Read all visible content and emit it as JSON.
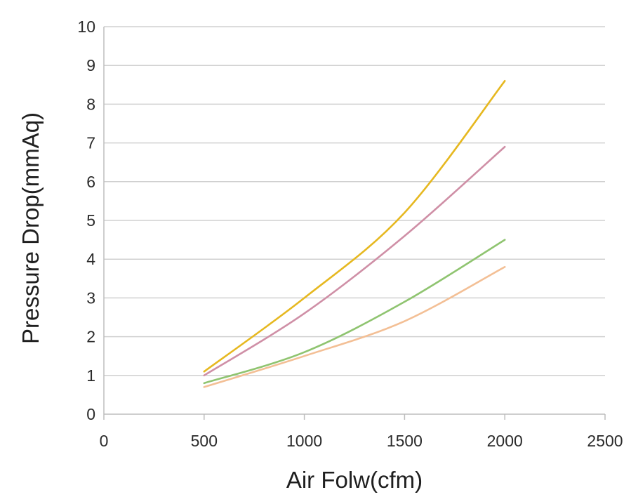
{
  "chart_data": {
    "type": "line",
    "title": "",
    "xlabel": "Air Folw(cfm)",
    "ylabel": "Pressure Drop(mmAq)",
    "xlim": [
      0,
      2500
    ],
    "ylim": [
      0,
      10
    ],
    "xticks": [
      0,
      500,
      1000,
      1500,
      2000,
      2500
    ],
    "yticks": [
      0,
      1,
      2,
      3,
      4,
      5,
      6,
      7,
      8,
      9,
      10
    ],
    "grid": true,
    "legend": "none",
    "series": [
      {
        "color": "#e6b820",
        "points": [
          [
            500,
            1.1
          ],
          [
            1000,
            3.0
          ],
          [
            1500,
            5.2
          ],
          [
            2000,
            8.6
          ]
        ]
      },
      {
        "color": "#cf8fa6",
        "points": [
          [
            500,
            1.0
          ],
          [
            1000,
            2.6
          ],
          [
            1500,
            4.6
          ],
          [
            2000,
            6.9
          ]
        ]
      },
      {
        "color": "#8fc470",
        "points": [
          [
            500,
            0.8
          ],
          [
            1000,
            1.6
          ],
          [
            1500,
            2.9
          ],
          [
            2000,
            4.5
          ]
        ]
      },
      {
        "color": "#f3bf95",
        "points": [
          [
            500,
            0.7
          ],
          [
            1000,
            1.5
          ],
          [
            1500,
            2.4
          ],
          [
            2000,
            3.8
          ]
        ]
      }
    ]
  }
}
